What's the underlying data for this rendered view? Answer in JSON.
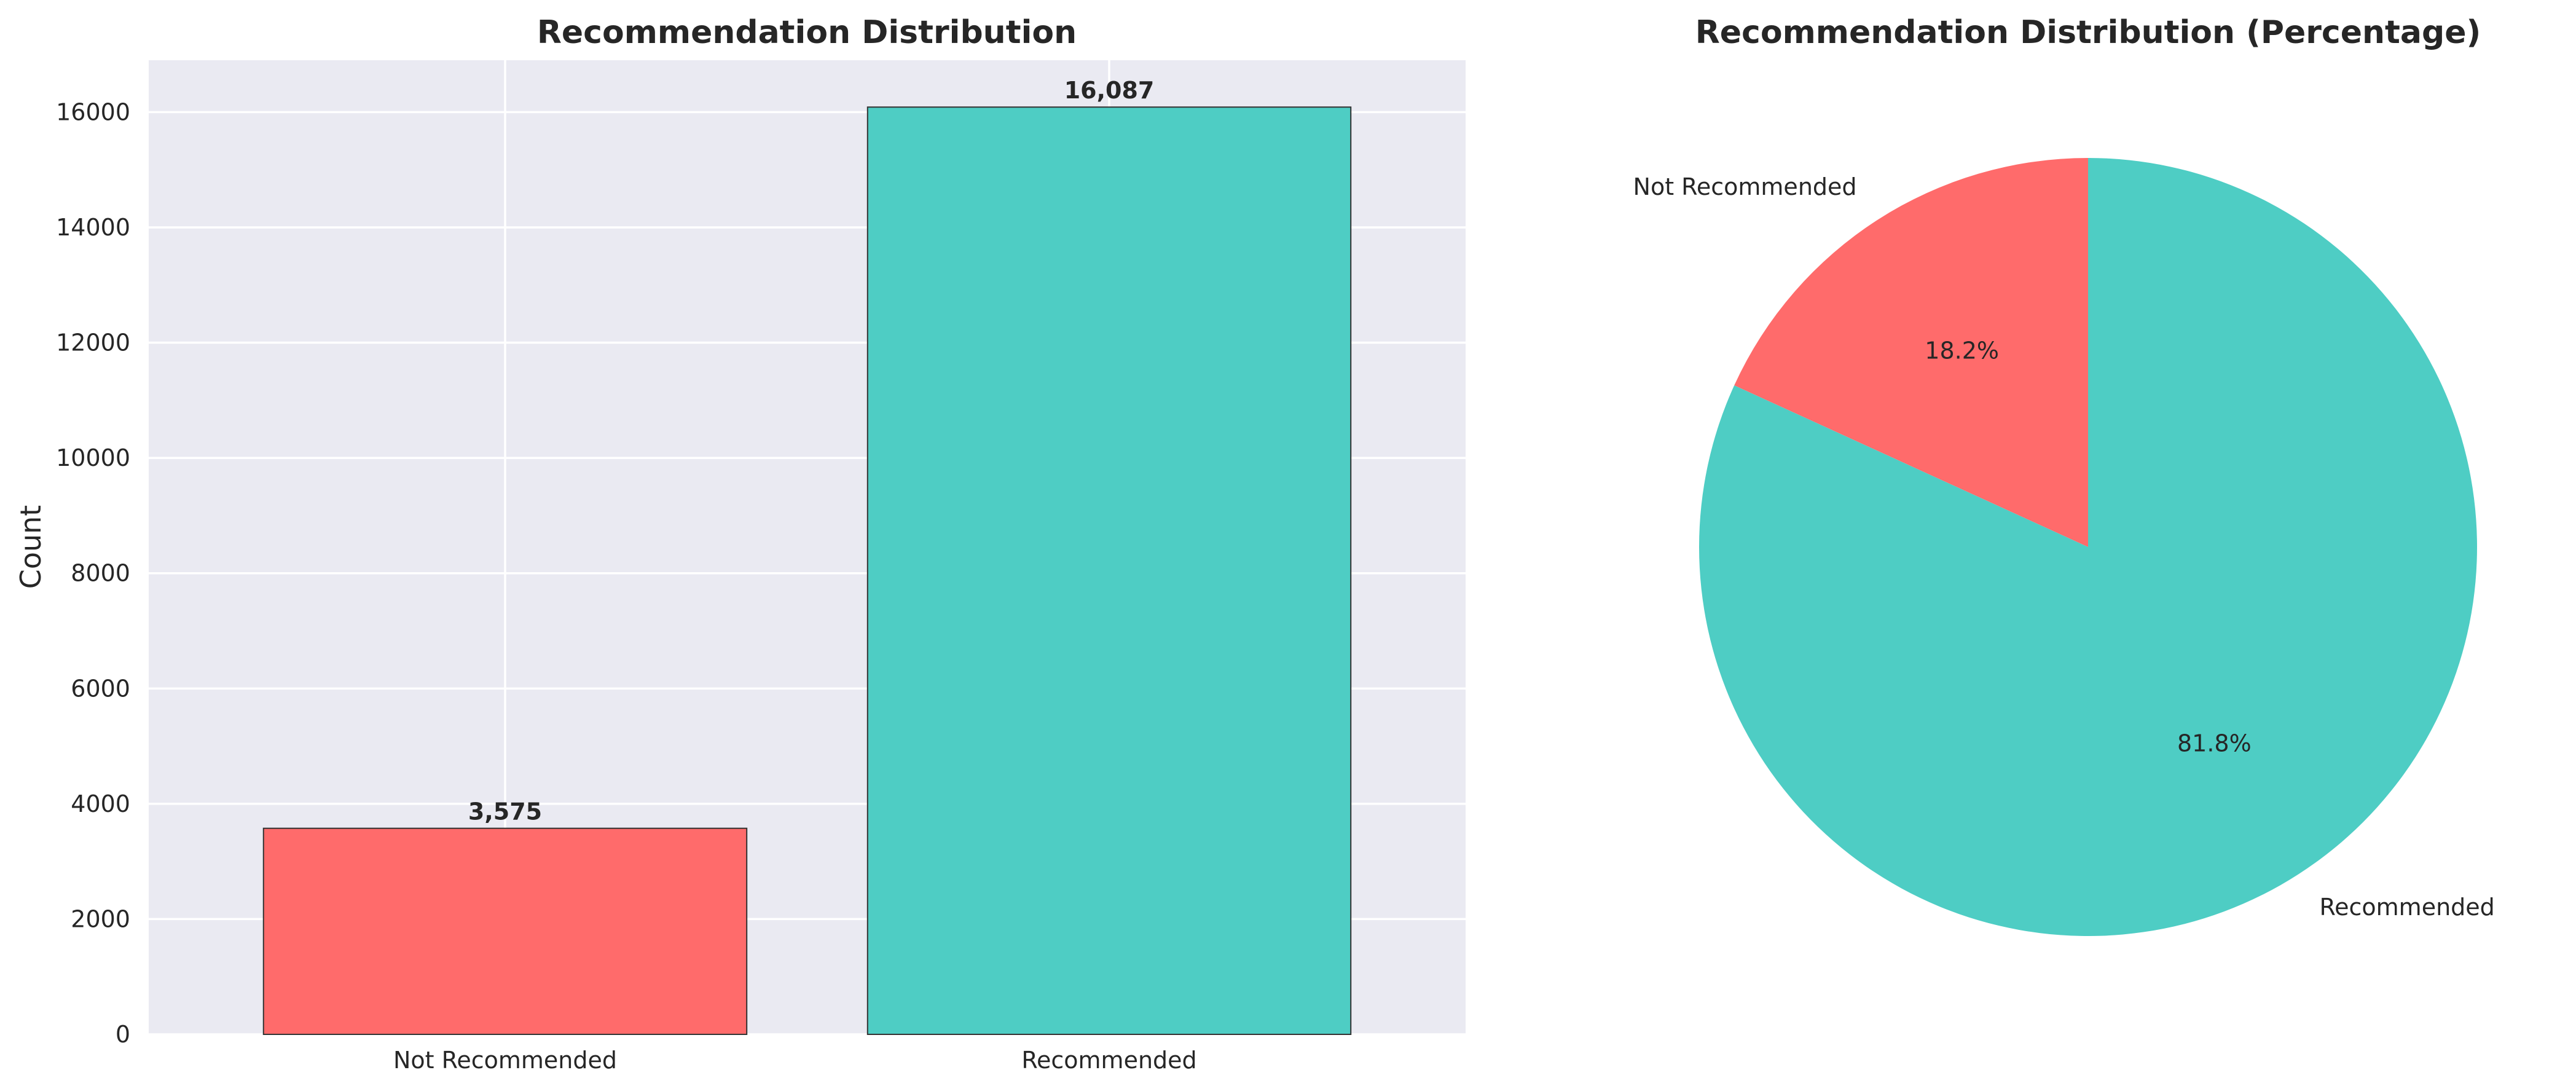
{
  "colors": {
    "not_recommended": "#FF6B6B",
    "recommended": "#4ECDC4",
    "plot_background": "#EAEAF2",
    "grid": "#FFFFFF",
    "edge": "#333333",
    "text": "#262626"
  },
  "chart_data": [
    {
      "type": "bar",
      "title": "Recommendation Distribution",
      "xlabel": "",
      "ylabel": "Count",
      "categories": [
        "Not Recommended",
        "Recommended"
      ],
      "values": [
        3575,
        16087
      ],
      "value_labels": [
        "3,575",
        "16,087"
      ],
      "ylim": [
        0,
        16900
      ],
      "yticks": [
        0,
        2000,
        4000,
        6000,
        8000,
        10000,
        12000,
        14000,
        16000
      ],
      "ytick_labels": [
        "0",
        "2000",
        "4000",
        "6000",
        "8000",
        "10000",
        "12000",
        "14000",
        "16000"
      ],
      "grid": true,
      "legend": "none"
    },
    {
      "type": "pie",
      "title": "Recommendation Distribution (Percentage)",
      "labels": [
        "Not Recommended",
        "Recommended"
      ],
      "values": [
        3575,
        16087
      ],
      "percent_labels": [
        "18.2%",
        "81.8%"
      ],
      "start_angle_deg": 90,
      "direction": "counterclockwise",
      "legend": "none"
    }
  ]
}
